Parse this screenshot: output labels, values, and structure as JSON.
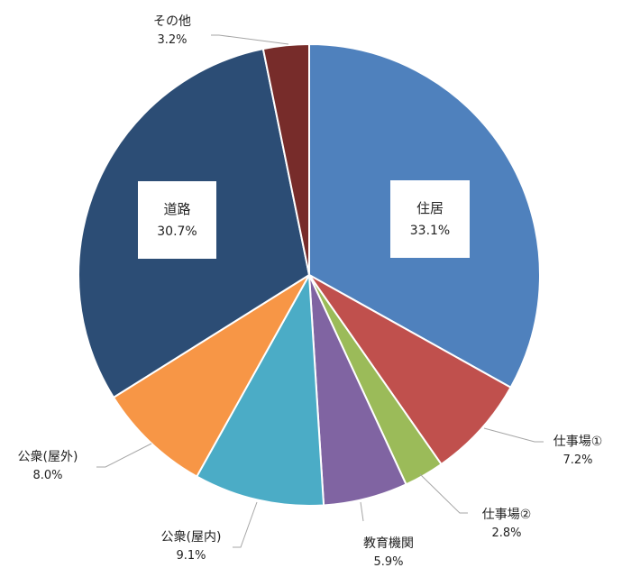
{
  "chart_data": {
    "type": "pie",
    "title": "",
    "start": "12 o'clock, clockwise",
    "slices": [
      {
        "label": "住居",
        "value": 33.1,
        "value_label": "33.1%",
        "color": "#4f81bd",
        "label_style": "inside-box"
      },
      {
        "label": "仕事場①",
        "value": 7.2,
        "value_label": "7.2%",
        "color": "#c0504d",
        "label_style": "outside-leader"
      },
      {
        "label": "仕事場②",
        "value": 2.8,
        "value_label": "2.8%",
        "color": "#9bbb59",
        "label_style": "outside-leader"
      },
      {
        "label": "教育機関",
        "value": 5.9,
        "value_label": "5.9%",
        "color": "#8064a2",
        "label_style": "outside-leader"
      },
      {
        "label": "公衆(屋内)",
        "value": 9.1,
        "value_label": "9.1%",
        "color": "#4bacc6",
        "label_style": "outside-leader"
      },
      {
        "label": "公衆(屋外)",
        "value": 8.0,
        "value_label": "8.0%",
        "color": "#f79646",
        "label_style": "outside-leader"
      },
      {
        "label": "道路",
        "value": 30.7,
        "value_label": "30.7%",
        "color": "#2c4d75",
        "label_style": "inside-box"
      },
      {
        "label": "その他",
        "value": 3.2,
        "value_label": "3.2%",
        "color": "#772c2a",
        "label_style": "outside-leader"
      }
    ],
    "legend": "none",
    "slice_border_color": "#ffffff",
    "leader_line_color": "#a6a6a6"
  }
}
